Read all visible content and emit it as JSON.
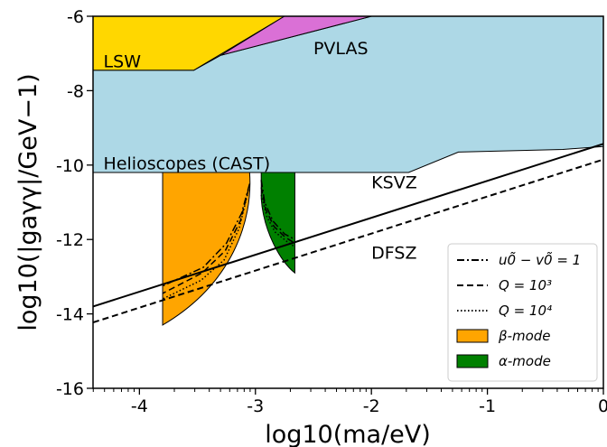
{
  "chart_data": {
    "type": "area",
    "xlabel": "log10(ma/eV)",
    "ylabel": "log10(|gaγγ|/GeV−1)",
    "xlim": [
      -4.4,
      0
    ],
    "ylim": [
      -16,
      -6
    ],
    "xticks": [
      -4,
      -3,
      -2,
      -1,
      0
    ],
    "xtick_labels": [
      "-4",
      "-3",
      "-2",
      "-1",
      "0"
    ],
    "yticks": [
      -16,
      -14,
      -12,
      -10,
      -8,
      -6
    ],
    "ytick_labels": [
      "-16",
      "-14",
      "-12",
      "-10",
      "-8",
      "-6"
    ],
    "regions": [
      {
        "name": "Helioscopes (CAST)",
        "color": "#add8e6",
        "points": [
          [
            -4.4,
            -7.45
          ],
          [
            -3.53,
            -7.45
          ],
          [
            -3.3,
            -7.05
          ],
          [
            -2.0,
            -6.0
          ],
          [
            0,
            -6.0
          ],
          [
            0,
            -9.5
          ],
          [
            -0.35,
            -9.58
          ],
          [
            -1.25,
            -9.65
          ],
          [
            -1.68,
            -10.2
          ],
          [
            -4.4,
            -10.2
          ]
        ]
      },
      {
        "name": "LSW",
        "color": "#ffd700",
        "points": [
          [
            -4.4,
            -6.0
          ],
          [
            -2.75,
            -6.0
          ],
          [
            -3.53,
            -7.45
          ],
          [
            -4.4,
            -7.45
          ]
        ]
      },
      {
        "name": "PVLAS",
        "color": "#da70d6",
        "points": [
          [
            -3.3,
            -7.05
          ],
          [
            -2.75,
            -6.0
          ],
          [
            -2.0,
            -6.0
          ]
        ]
      }
    ],
    "lines": [
      {
        "name": "KSVZ",
        "style": "solid",
        "points": [
          [
            -4.4,
            -13.8
          ],
          [
            0,
            -9.43
          ]
        ]
      },
      {
        "name": "DFSZ",
        "style": "dashed",
        "points": [
          [
            -4.4,
            -14.23
          ],
          [
            0,
            -9.85
          ]
        ]
      }
    ],
    "modes": [
      {
        "name": "β-mode",
        "color": "#ffa500",
        "left_x": -3.8,
        "top_y": -10.2,
        "bottom_y": -14.3,
        "right_top_x": -3.05,
        "curves": {
          "dashdot": [
            [
              -3.05,
              -10.5
            ],
            [
              -3.12,
              -11.3
            ],
            [
              -3.25,
              -12.1
            ],
            [
              -3.45,
              -12.75
            ],
            [
              -3.8,
              -13.25
            ]
          ],
          "dashed": [
            [
              -3.06,
              -10.65
            ],
            [
              -3.13,
              -11.5
            ],
            [
              -3.26,
              -12.3
            ],
            [
              -3.46,
              -12.9
            ],
            [
              -3.8,
              -13.45
            ]
          ],
          "dotted": [
            [
              -3.07,
              -10.8
            ],
            [
              -3.14,
              -11.7
            ],
            [
              -3.27,
              -12.55
            ],
            [
              -3.47,
              -13.1
            ],
            [
              -3.8,
              -13.6
            ]
          ]
        }
      },
      {
        "name": "α-mode",
        "color": "#008000",
        "left_x": -2.95,
        "right_x": -2.66,
        "top_y": -10.2,
        "bottom_y": -12.9,
        "curves": {
          "dashdot": [
            [
              -2.95,
              -10.4
            ],
            [
              -2.92,
              -11.0
            ],
            [
              -2.85,
              -11.5
            ],
            [
              -2.75,
              -11.85
            ],
            [
              -2.66,
              -12.0
            ]
          ],
          "dashed": [
            [
              -2.95,
              -10.6
            ],
            [
              -2.91,
              -11.2
            ],
            [
              -2.84,
              -11.65
            ],
            [
              -2.74,
              -11.95
            ],
            [
              -2.66,
              -12.1
            ]
          ],
          "dotted": [
            [
              -2.95,
              -10.8
            ],
            [
              -2.9,
              -11.4
            ],
            [
              -2.83,
              -11.8
            ],
            [
              -2.73,
              -12.05
            ],
            [
              -2.66,
              -12.2
            ]
          ]
        }
      }
    ],
    "annotations": [
      {
        "text": "LSW",
        "x": -4.31,
        "y": -7.2
      },
      {
        "text": "PVLAS",
        "x": -2.5,
        "y": -6.85
      },
      {
        "text": "Helioscopes (CAST)",
        "x": -4.31,
        "y": -9.95
      },
      {
        "text": "KSVZ",
        "x": -2.0,
        "y": -10.45
      },
      {
        "text": "DFSZ",
        "x": -2.0,
        "y": -12.35
      }
    ],
    "legend": {
      "placement": "lower-right",
      "entries": [
        {
          "label": "u0̃ − v0̃ = 1",
          "style": "dashdot"
        },
        {
          "label": "Q = 10³",
          "style": "dashed"
        },
        {
          "label": "Q = 10⁴",
          "style": "dotted"
        },
        {
          "label": "β-mode",
          "style": "patch",
          "color": "#ffa500"
        },
        {
          "label": "α-mode",
          "style": "patch",
          "color": "#008000"
        }
      ]
    }
  }
}
